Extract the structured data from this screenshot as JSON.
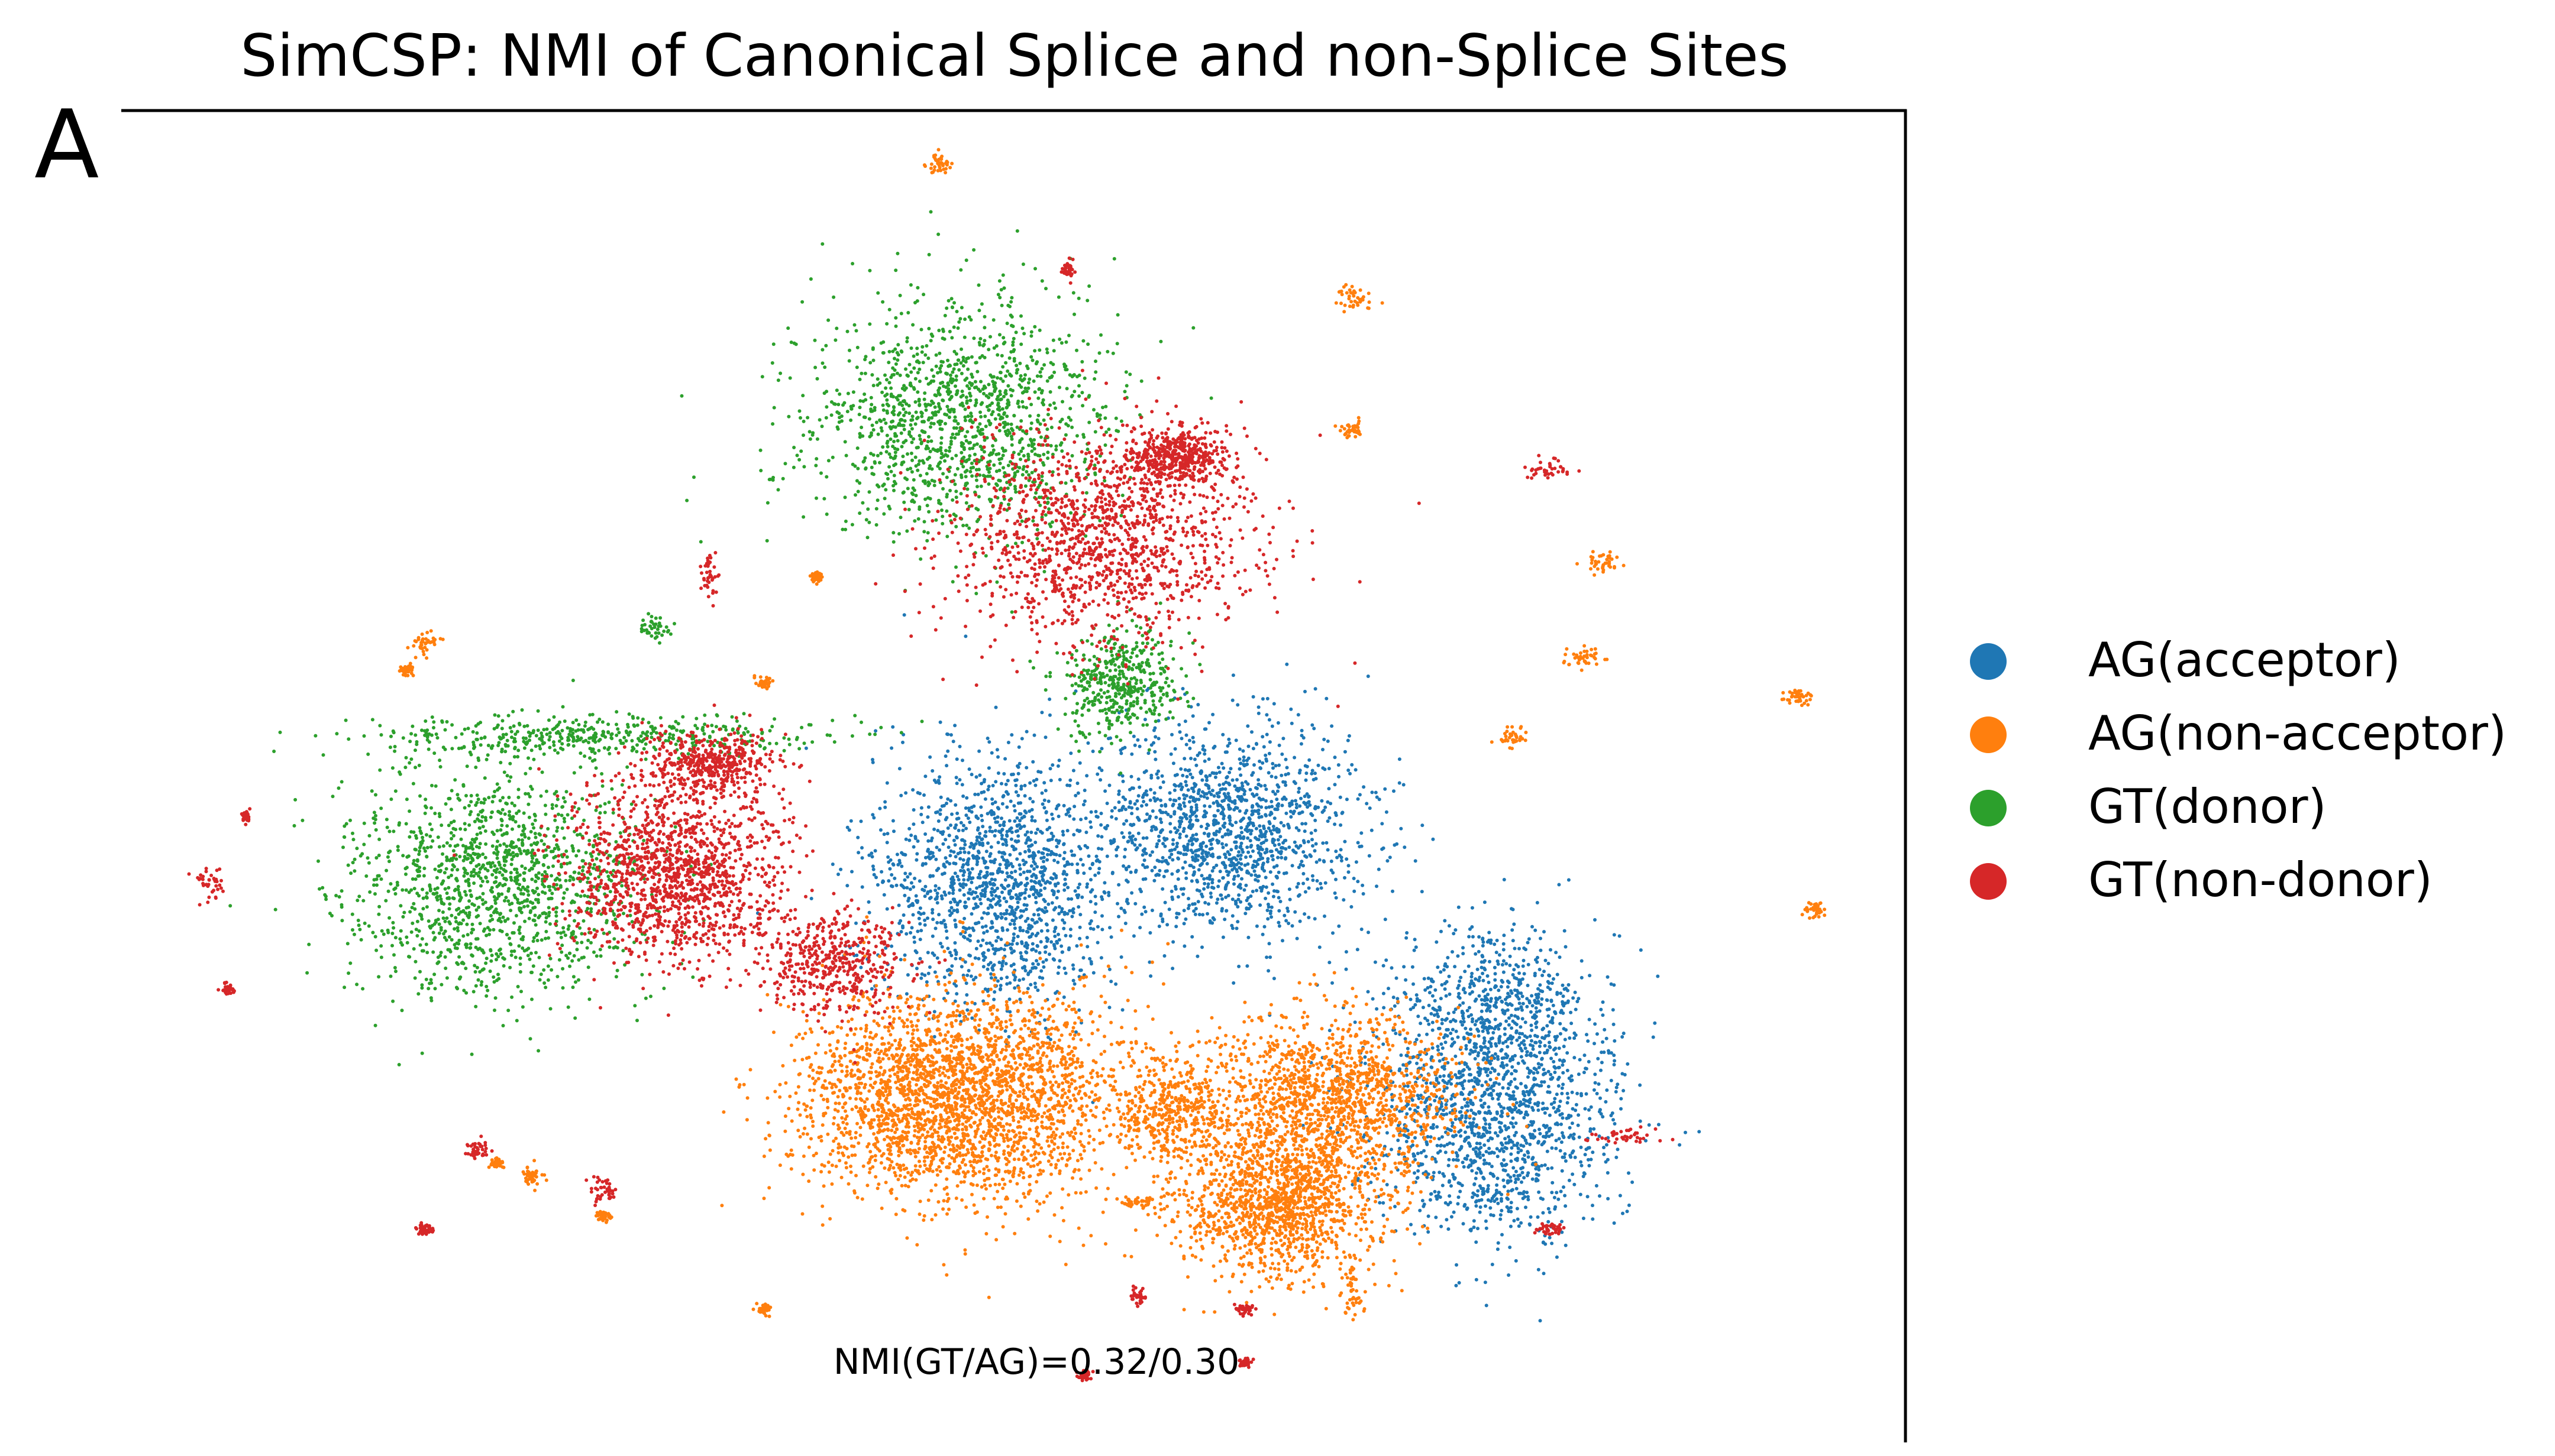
{
  "panel_label": "A",
  "chart_data": {
    "type": "scatter",
    "title": "SimCSP: NMI of Canonical Splice and non-Splice Sites",
    "xlabel": "",
    "ylabel": "",
    "annotation": "NMI(GT/AG)=0.32/0.30",
    "axes": "UMAP embedding; only top and right spines shown, no ticks",
    "grid": false,
    "legend_position": "right",
    "series": [
      {
        "name": "AG(acceptor)",
        "color": "#1f77b4",
        "clusters": [
          {
            "x": 0.49,
            "y": 0.58,
            "spread": [
              0.033,
              0.048
            ],
            "density": "high"
          },
          {
            "x": 0.62,
            "y": 0.54,
            "spread": [
              0.038,
              0.04
            ],
            "density": "high"
          },
          {
            "x": 0.77,
            "y": 0.67,
            "spread": [
              0.025,
              0.027
            ],
            "density": "medium"
          },
          {
            "x": 0.77,
            "y": 0.75,
            "spread": [
              0.035,
              0.048
            ],
            "density": "high"
          },
          {
            "x": 0.77,
            "y": 0.81,
            "spread": [
              0.01,
              0.01
            ],
            "density": "low"
          },
          {
            "x": 0.51,
            "y": 0.61,
            "spread": [
              0.01,
              0.03
            ],
            "density": "low"
          }
        ]
      },
      {
        "name": "AG(non-acceptor)",
        "color": "#ff7f0e",
        "clusters": [
          {
            "x": 0.44,
            "y": 0.74,
            "spread": [
              0.032,
              0.038
            ],
            "density": "high"
          },
          {
            "x": 0.5,
            "y": 0.74,
            "spread": [
              0.032,
              0.04
            ],
            "density": "high"
          },
          {
            "x": 0.59,
            "y": 0.75,
            "spread": [
              0.017,
              0.02
            ],
            "density": "medium"
          },
          {
            "x": 0.68,
            "y": 0.74,
            "spread": [
              0.035,
              0.03
            ],
            "density": "high"
          },
          {
            "x": 0.65,
            "y": 0.82,
            "spread": [
              0.028,
              0.028
            ],
            "density": "high"
          },
          {
            "x": 0.46,
            "y": 0.04,
            "spread": [
              0.004,
              0.004
            ],
            "density": "low"
          },
          {
            "x": 0.69,
            "y": 0.14,
            "spread": [
              0.006,
              0.004
            ],
            "density": "low"
          },
          {
            "x": 0.69,
            "y": 0.24,
            "spread": [
              0.003,
              0.003
            ],
            "density": "low"
          },
          {
            "x": 0.83,
            "y": 0.34,
            "spread": [
              0.004,
              0.004
            ],
            "density": "low"
          },
          {
            "x": 0.82,
            "y": 0.41,
            "spread": [
              0.005,
              0.004
            ],
            "density": "low"
          },
          {
            "x": 0.94,
            "y": 0.44,
            "spread": [
              0.004,
              0.003
            ],
            "density": "low"
          },
          {
            "x": 0.78,
            "y": 0.47,
            "spread": [
              0.005,
              0.004
            ],
            "density": "low"
          },
          {
            "x": 0.17,
            "y": 0.4,
            "spread": [
              0.004,
              0.004
            ],
            "density": "low"
          },
          {
            "x": 0.16,
            "y": 0.42,
            "spread": [
              0.002,
              0.002
            ],
            "density": "low"
          },
          {
            "x": 0.36,
            "y": 0.43,
            "spread": [
              0.002,
              0.002
            ],
            "density": "low"
          },
          {
            "x": 0.21,
            "y": 0.79,
            "spread": [
              0.002,
              0.002
            ],
            "density": "low"
          },
          {
            "x": 0.23,
            "y": 0.8,
            "spread": [
              0.003,
              0.004
            ],
            "density": "low"
          },
          {
            "x": 0.27,
            "y": 0.83,
            "spread": [
              0.002,
              0.002
            ],
            "density": "low"
          },
          {
            "x": 0.36,
            "y": 0.9,
            "spread": [
              0.002,
              0.002
            ],
            "density": "low"
          },
          {
            "x": 0.57,
            "y": 0.82,
            "spread": [
              0.006,
              0.002
            ],
            "density": "low"
          },
          {
            "x": 0.69,
            "y": 0.89,
            "spread": [
              0.003,
              0.01
            ],
            "density": "low"
          },
          {
            "x": 0.95,
            "y": 0.6,
            "spread": [
              0.003,
              0.003
            ],
            "density": "low"
          },
          {
            "x": 0.39,
            "y": 0.35,
            "spread": [
              0.002,
              0.002
            ],
            "density": "low"
          }
        ]
      },
      {
        "name": "GT(donor)",
        "color": "#2ca02c",
        "clusters": [
          {
            "x": 0.47,
            "y": 0.23,
            "spread": [
              0.042,
              0.045
            ],
            "density": "high"
          },
          {
            "x": 0.56,
            "y": 0.43,
            "spread": [
              0.017,
              0.02
            ],
            "density": "medium"
          },
          {
            "x": 0.27,
            "y": 0.47,
            "spread": [
              0.065,
              0.008
            ],
            "density": "medium"
          },
          {
            "x": 0.21,
            "y": 0.58,
            "spread": [
              0.042,
              0.042
            ],
            "density": "high"
          },
          {
            "x": 0.3,
            "y": 0.39,
            "spread": [
              0.004,
              0.005
            ],
            "density": "low"
          }
        ]
      },
      {
        "name": "GT(non-donor)",
        "color": "#d62728",
        "clusters": [
          {
            "x": 0.55,
            "y": 0.32,
            "spread": [
              0.042,
              0.04
            ],
            "density": "high"
          },
          {
            "x": 0.59,
            "y": 0.26,
            "spread": [
              0.015,
              0.01
            ],
            "density": "medium"
          },
          {
            "x": 0.33,
            "y": 0.49,
            "spread": [
              0.018,
              0.012
            ],
            "density": "medium"
          },
          {
            "x": 0.31,
            "y": 0.57,
            "spread": [
              0.03,
              0.035
            ],
            "density": "high"
          },
          {
            "x": 0.4,
            "y": 0.64,
            "spread": [
              0.02,
              0.02
            ],
            "density": "medium"
          },
          {
            "x": 0.53,
            "y": 0.12,
            "spread": [
              0.002,
              0.003
            ],
            "density": "low"
          },
          {
            "x": 0.8,
            "y": 0.27,
            "spread": [
              0.006,
              0.004
            ],
            "density": "low"
          },
          {
            "x": 0.05,
            "y": 0.58,
            "spread": [
              0.004,
              0.006
            ],
            "density": "low"
          },
          {
            "x": 0.07,
            "y": 0.53,
            "spread": [
              0.001,
              0.002
            ],
            "density": "low"
          },
          {
            "x": 0.06,
            "y": 0.66,
            "spread": [
              0.002,
              0.002
            ],
            "density": "low"
          },
          {
            "x": 0.33,
            "y": 0.35,
            "spread": [
              0.002,
              0.008
            ],
            "density": "low"
          },
          {
            "x": 0.2,
            "y": 0.78,
            "spread": [
              0.004,
              0.004
            ],
            "density": "low"
          },
          {
            "x": 0.27,
            "y": 0.81,
            "spread": [
              0.004,
              0.005
            ],
            "density": "low"
          },
          {
            "x": 0.17,
            "y": 0.84,
            "spread": [
              0.002,
              0.002
            ],
            "density": "low"
          },
          {
            "x": 0.84,
            "y": 0.77,
            "spread": [
              0.008,
              0.003
            ],
            "density": "low"
          },
          {
            "x": 0.8,
            "y": 0.84,
            "spread": [
              0.004,
              0.002
            ],
            "density": "low"
          },
          {
            "x": 0.57,
            "y": 0.89,
            "spread": [
              0.002,
              0.003
            ],
            "density": "low"
          },
          {
            "x": 0.63,
            "y": 0.9,
            "spread": [
              0.002,
              0.002
            ],
            "density": "low"
          },
          {
            "x": 0.63,
            "y": 0.94,
            "spread": [
              0.002,
              0.002
            ],
            "density": "low"
          },
          {
            "x": 0.54,
            "y": 0.95,
            "spread": [
              0.002,
              0.002
            ],
            "density": "low"
          }
        ]
      }
    ]
  }
}
